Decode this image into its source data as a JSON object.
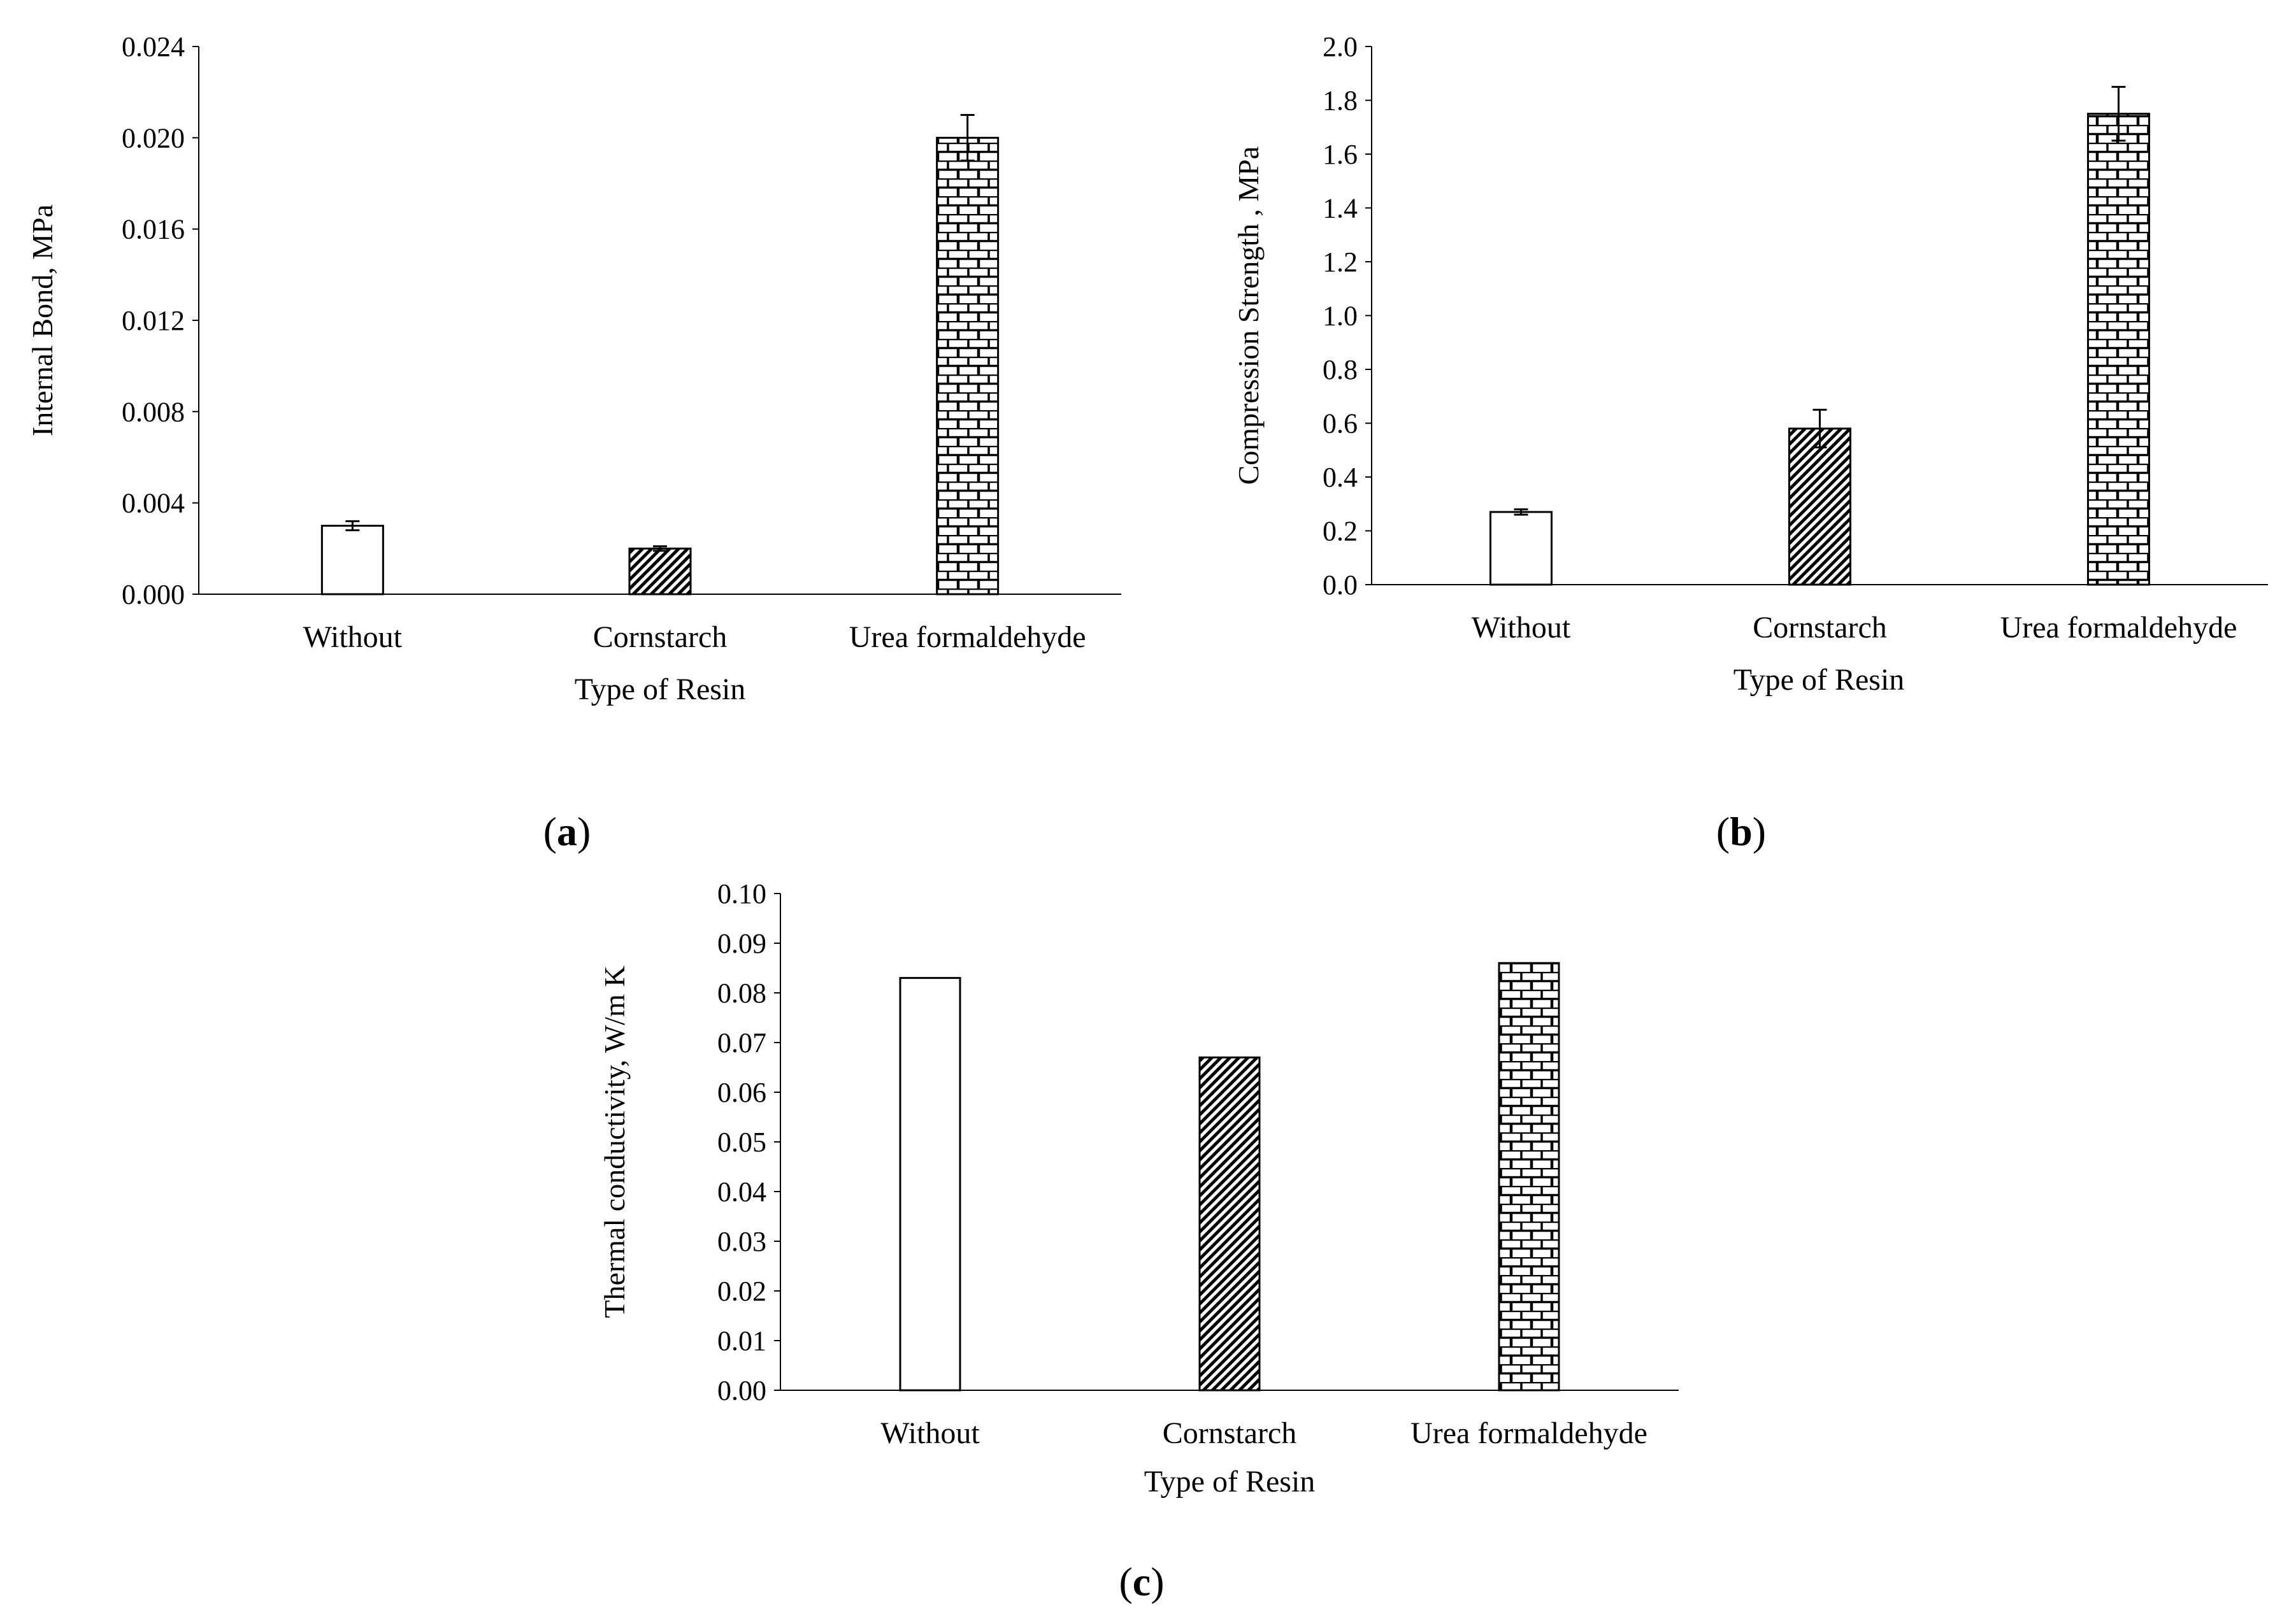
{
  "figure": {
    "background": "#ffffff",
    "ink": "#000000"
  },
  "chart_data": [
    {
      "panel_label": "a",
      "type": "bar",
      "categories": [
        "Without",
        "Cornstarch",
        "Urea formaldehyde"
      ],
      "values": [
        0.003,
        0.002,
        0.02
      ],
      "errors": [
        0.0002,
        0.0001,
        0.001
      ],
      "patterns": [
        "none",
        "diagonal-hatch",
        "brick"
      ],
      "title": "",
      "xlabel": "Type of Resin",
      "ylabel": "Internal  Bond, MPa",
      "ylim": [
        0,
        0.024
      ],
      "yticks": [
        0.0,
        0.004,
        0.008,
        0.012,
        0.016,
        0.02,
        0.024
      ],
      "ytick_labels": [
        "0.000",
        "0.004",
        "0.008",
        "0.012",
        "0.016",
        "0.020",
        "0.024"
      ],
      "grid": false
    },
    {
      "panel_label": "b",
      "type": "bar",
      "categories": [
        "Without",
        "Cornstarch",
        "Urea formaldehyde"
      ],
      "values": [
        0.27,
        0.58,
        1.75
      ],
      "errors": [
        0.01,
        0.07,
        0.1
      ],
      "patterns": [
        "none",
        "diagonal-hatch",
        "brick"
      ],
      "title": "",
      "xlabel": "Type of Resin",
      "ylabel": "Compression Strength , MPa",
      "ylim": [
        0,
        2.0
      ],
      "yticks": [
        0.0,
        0.2,
        0.4,
        0.6,
        0.8,
        1.0,
        1.2,
        1.4,
        1.6,
        1.8,
        2.0
      ],
      "ytick_labels": [
        "0.0",
        "0.2",
        "0.4",
        "0.6",
        "0.8",
        "1.0",
        "1.2",
        "1.4",
        "1.6",
        "1.8",
        "2.0"
      ],
      "grid": false
    },
    {
      "panel_label": "c",
      "type": "bar",
      "categories": [
        "Without",
        "Cornstarch",
        "Urea formaldehyde"
      ],
      "values": [
        0.083,
        0.067,
        0.086
      ],
      "errors": [
        0,
        0,
        0
      ],
      "patterns": [
        "none",
        "diagonal-hatch",
        "brick"
      ],
      "title": "",
      "xlabel": "Type of Resin",
      "ylabel": "Thermal conductivity, W/m K",
      "ylim": [
        0,
        0.1
      ],
      "yticks": [
        0.0,
        0.01,
        0.02,
        0.03,
        0.04,
        0.05,
        0.06,
        0.07,
        0.08,
        0.09,
        0.1
      ],
      "ytick_labels": [
        "0.00",
        "0.01",
        "0.02",
        "0.03",
        "0.04",
        "0.05",
        "0.06",
        "0.07",
        "0.08",
        "0.09",
        "0.10"
      ],
      "grid": false
    }
  ]
}
